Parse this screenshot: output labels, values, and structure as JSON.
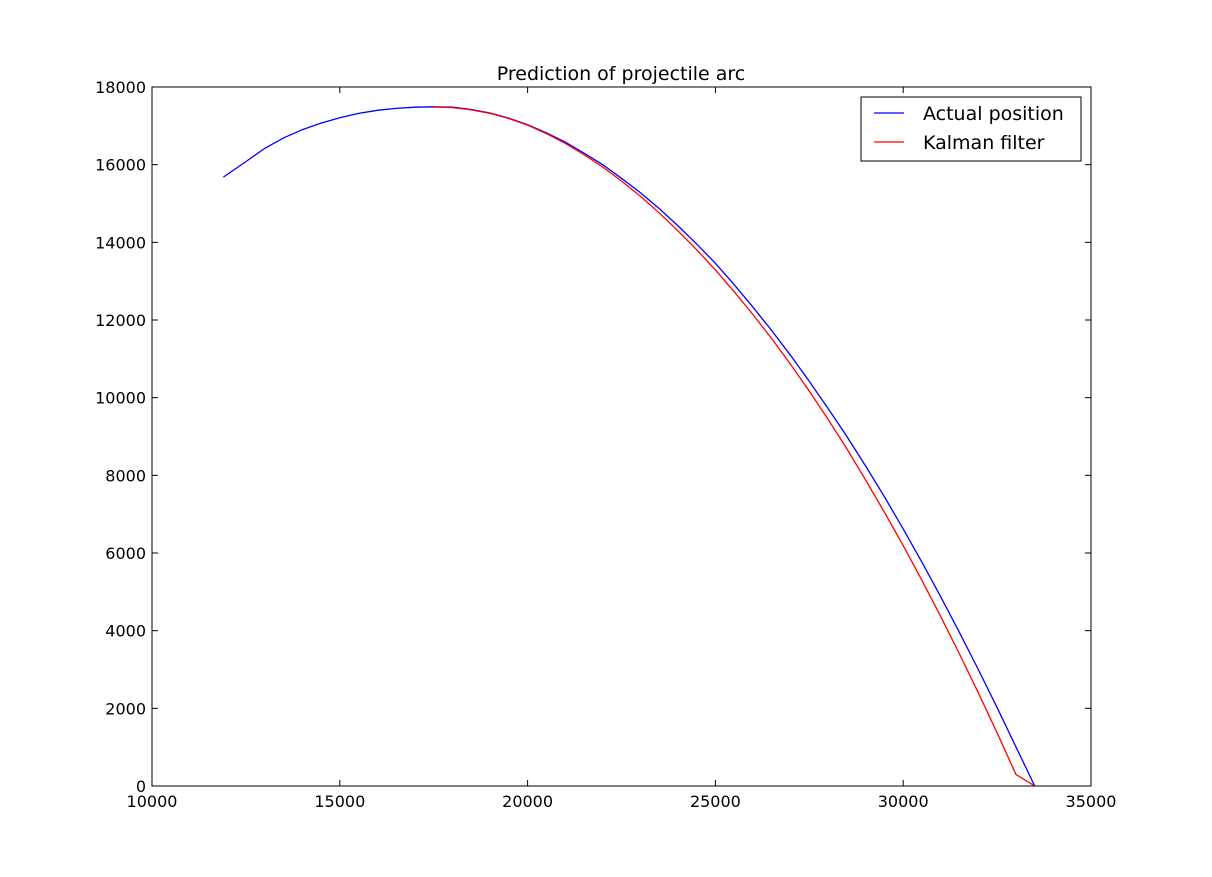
{
  "chart_data": {
    "type": "line",
    "title": "Prediction of projectile arc",
    "xlabel": "",
    "ylabel": "",
    "xlim": [
      10000,
      35000
    ],
    "ylim": [
      0,
      18000
    ],
    "xticks": [
      10000,
      15000,
      20000,
      25000,
      30000,
      35000
    ],
    "yticks": [
      0,
      2000,
      4000,
      6000,
      8000,
      10000,
      12000,
      14000,
      16000,
      18000
    ],
    "grid": false,
    "legend_position": "top-right",
    "series": [
      {
        "name": "Actual position",
        "color": "#0000ff",
        "x": [
          11900,
          12500,
          13000,
          13500,
          14000,
          14500,
          15000,
          15500,
          16000,
          16500,
          17000,
          17500,
          18000,
          18500,
          19000,
          19500,
          20000,
          20500,
          21000,
          21500,
          22000,
          22500,
          23000,
          23500,
          24000,
          24500,
          25000,
          25500,
          26000,
          26500,
          27000,
          27500,
          28000,
          28500,
          29000,
          29500,
          30000,
          30500,
          31000,
          31500,
          32000,
          32500,
          33000,
          33500,
          34000,
          34200
        ],
        "y": [
          15680,
          16080,
          16420,
          16690,
          16900,
          17070,
          17210,
          17320,
          17400,
          17450,
          17480,
          17490,
          17480,
          17420,
          17330,
          17200,
          17030,
          16820,
          16580,
          16300,
          16000,
          15650,
          15280,
          14870,
          14430,
          13960,
          13460,
          12910,
          12330,
          11730,
          11090,
          10420,
          9720,
          9000,
          8240,
          7450,
          6620,
          5760,
          4870,
          3950,
          3000,
          2020,
          1010,
          0,
          0,
          0
        ]
      },
      {
        "name": "Kalman filter",
        "color": "#ff0000",
        "x": [
          17500,
          18000,
          18500,
          19000,
          19500,
          20000,
          20500,
          21000,
          21500,
          22000,
          22500,
          23000,
          23500,
          24000,
          24500,
          25000,
          25500,
          26000,
          26500,
          27000,
          27500,
          28000,
          28500,
          29000,
          29500,
          30000,
          30500,
          31000,
          31500,
          32000,
          32500,
          33000,
          33500,
          34000
        ],
        "y": [
          17490,
          17470,
          17410,
          17320,
          17190,
          17020,
          16800,
          16550,
          16260,
          15940,
          15580,
          15190,
          14760,
          14300,
          13810,
          13290,
          12730,
          12140,
          11520,
          10860,
          10170,
          9440,
          8680,
          7880,
          7050,
          6190,
          5290,
          4360,
          3400,
          2400,
          1370,
          300,
          0,
          0
        ]
      }
    ]
  }
}
